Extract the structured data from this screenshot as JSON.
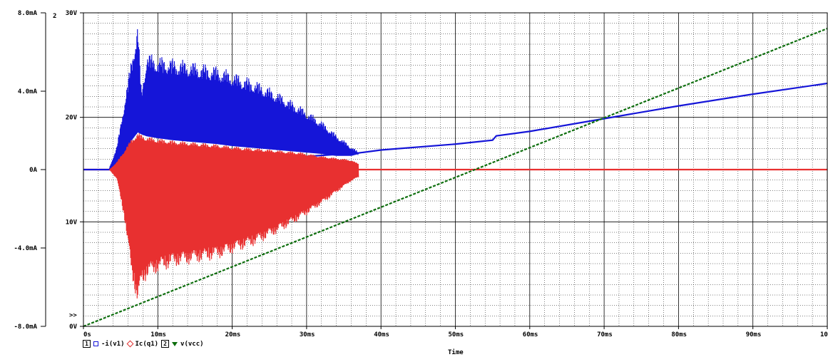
{
  "chart_data": {
    "type": "line",
    "xlabel": "Time",
    "x_unit": "ms",
    "xlim": [
      0,
      100
    ],
    "x_ticks": [
      "0s",
      "10ms",
      "20ms",
      "30ms",
      "40ms",
      "50ms",
      "60ms",
      "70ms",
      "80ms",
      "90ms",
      "100ms"
    ],
    "axis1": {
      "id": "1",
      "ylim": [
        -8.0,
        8.0
      ],
      "unit": "mA",
      "ticks": [
        "8.0mA",
        "4.0mA",
        "0A",
        "-4.0mA",
        "-8.0mA"
      ],
      "tick_values": [
        8,
        4,
        0,
        -4,
        -8
      ]
    },
    "axis2": {
      "id": "2",
      "ylim": [
        0,
        30
      ],
      "unit": "V",
      "ticks": [
        "30V",
        "20V",
        "10V",
        "0V"
      ],
      "tick_values": [
        30,
        20,
        10,
        0
      ]
    },
    "series": [
      {
        "name": "-i(v1)",
        "axis": 1,
        "color": "#1515d8",
        "marker": "square",
        "oscillating_envelope_ms": {
          "x": [
            3.5,
            4.5,
            5.5,
            6.5,
            7.3,
            7.8,
            8.5,
            10,
            12,
            15,
            18,
            20,
            23,
            26,
            29,
            32,
            34,
            36,
            37
          ],
          "upper": [
            0.1,
            1.2,
            3.5,
            5.8,
            7.6,
            4.0,
            6.0,
            5.8,
            5.7,
            5.5,
            5.3,
            5.0,
            4.6,
            4.0,
            3.3,
            2.5,
            1.8,
            1.2,
            0.9
          ],
          "lower": [
            0.0,
            0.2,
            0.8,
            1.5,
            1.9,
            1.8,
            1.7,
            1.6,
            1.5,
            1.4,
            1.3,
            1.2,
            1.1,
            1.0,
            0.9,
            0.8,
            0.7,
            0.7,
            0.8
          ]
        },
        "x": [
          0,
          3.5,
          37,
          40,
          50,
          55,
          55.5,
          60,
          70,
          80,
          90,
          100
        ],
        "values": [
          0,
          0,
          0.85,
          1.0,
          1.3,
          1.5,
          1.72,
          1.95,
          2.6,
          3.25,
          3.85,
          4.4
        ]
      },
      {
        "name": "Ic(q1)",
        "axis": 1,
        "color": "#e83030",
        "marker": "diamond",
        "oscillating_envelope_ms": {
          "x": [
            3.5,
            4.5,
            5.5,
            6.5,
            7.3,
            7.8,
            8.5,
            10,
            12,
            15,
            18,
            20,
            23,
            26,
            29,
            32,
            34,
            36,
            37
          ],
          "upper": [
            0.0,
            0.4,
            1.0,
            1.6,
            1.9,
            1.8,
            1.7,
            1.6,
            1.5,
            1.4,
            1.3,
            1.2,
            1.1,
            1.0,
            0.9,
            0.7,
            0.6,
            0.5,
            0.3
          ],
          "lower": [
            0.0,
            -0.5,
            -2.5,
            -5.5,
            -7.0,
            -6.0,
            -5.6,
            -5.3,
            -5.0,
            -4.8,
            -4.6,
            -4.3,
            -3.9,
            -3.3,
            -2.6,
            -1.8,
            -1.2,
            -0.6,
            -0.4
          ]
        },
        "x": [
          0,
          3.5,
          37,
          100
        ],
        "values": [
          0,
          0,
          0,
          0
        ]
      },
      {
        "name": "v(vcc)",
        "axis": 2,
        "color": "#0d6e0d",
        "marker": "triangle",
        "line_style": "dashed",
        "x": [
          0,
          100
        ],
        "values": [
          0,
          28.5
        ]
      }
    ],
    "legend": {
      "groups": [
        {
          "axis_label": "1",
          "entries": [
            "-i(v1)",
            "Ic(q1)"
          ]
        },
        {
          "axis_label": "2",
          "entries": [
            "v(vcc)"
          ]
        }
      ],
      "placement": "bottom-left"
    },
    "grid": true,
    "markers": {
      "axis2_top_label": "2",
      "selector": ">>"
    }
  }
}
